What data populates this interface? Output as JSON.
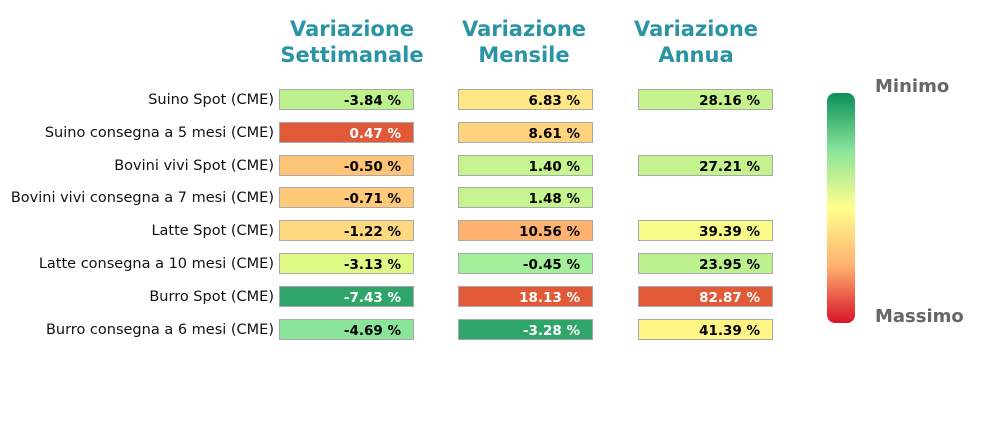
{
  "chart_data": {
    "type": "table",
    "columns": [
      {
        "key": "weekly",
        "label_lines": [
          "Variazione",
          "Settimanale"
        ]
      },
      {
        "key": "monthly",
        "label_lines": [
          "Variazione",
          "Mensile"
        ]
      },
      {
        "key": "annual",
        "label_lines": [
          "Variazione",
          "Annua"
        ]
      }
    ],
    "rows": [
      {
        "label": "Suino Spot (CME)",
        "cells": [
          {
            "text": "-3.84 %",
            "color": "#bdf18e",
            "text_color": "#000000"
          },
          {
            "text": "6.83 %",
            "color": "#ffe785",
            "text_color": "#000000"
          },
          {
            "text": "28.16 %",
            "color": "#c7f38f",
            "text_color": "#000000"
          }
        ]
      },
      {
        "label": "Suino consegna a 5 mesi (CME)",
        "cells": [
          {
            "text": "0.47 %",
            "color": "#e05a38",
            "text_color": "#ffffff"
          },
          {
            "text": "8.61 %",
            "color": "#ffd27d",
            "text_color": "#000000"
          },
          null
        ]
      },
      {
        "label": "Bovini vivi Spot (CME)",
        "cells": [
          {
            "text": "-0.50 %",
            "color": "#ffc477",
            "text_color": "#000000"
          },
          {
            "text": "1.40 %",
            "color": "#c5f490",
            "text_color": "#000000"
          },
          {
            "text": "27.21 %",
            "color": "#c4f28f",
            "text_color": "#000000"
          }
        ]
      },
      {
        "label": "Bovini vivi consegna a 7 mesi (CME)",
        "cells": [
          {
            "text": "-0.71 %",
            "color": "#ffc97a",
            "text_color": "#000000"
          },
          {
            "text": "1.48 %",
            "color": "#c5f490",
            "text_color": "#000000"
          },
          null
        ]
      },
      {
        "label": "Latte Spot (CME)",
        "cells": [
          {
            "text": "-1.22 %",
            "color": "#ffd97f",
            "text_color": "#000000"
          },
          {
            "text": "10.56 %",
            "color": "#ffb26f",
            "text_color": "#000000"
          },
          {
            "text": "39.39 %",
            "color": "#fafd8a",
            "text_color": "#000000"
          }
        ]
      },
      {
        "label": "Latte consegna a 10 mesi (CME)",
        "cells": [
          {
            "text": "-3.13 %",
            "color": "#defa85",
            "text_color": "#000000"
          },
          {
            "text": "-0.45 %",
            "color": "#a3ee98",
            "text_color": "#000000"
          },
          {
            "text": "23.95 %",
            "color": "#bdf18e",
            "text_color": "#000000"
          }
        ]
      },
      {
        "label": "Burro Spot (CME)",
        "cells": [
          {
            "text": "-7.43 %",
            "color": "#2fa56a",
            "text_color": "#ffffff"
          },
          {
            "text": "18.13 %",
            "color": "#e05a38",
            "text_color": "#ffffff"
          },
          {
            "text": "82.87 %",
            "color": "#e05a38",
            "text_color": "#ffffff"
          }
        ]
      },
      {
        "label": "Burro consegna a 6 mesi (CME)",
        "cells": [
          {
            "text": "-4.69 %",
            "color": "#8ae49a",
            "text_color": "#000000"
          },
          {
            "text": "-3.28 %",
            "color": "#2fa56a",
            "text_color": "#ffffff"
          },
          {
            "text": "41.39 %",
            "color": "#fff585",
            "text_color": "#000000"
          }
        ]
      }
    ],
    "scale": {
      "min_label": "Minimo",
      "max_label": "Massimo",
      "colors": [
        "#0a8f5a",
        "#8ae49a",
        "#ffff8c",
        "#ffb26f",
        "#d7142a"
      ]
    }
  }
}
